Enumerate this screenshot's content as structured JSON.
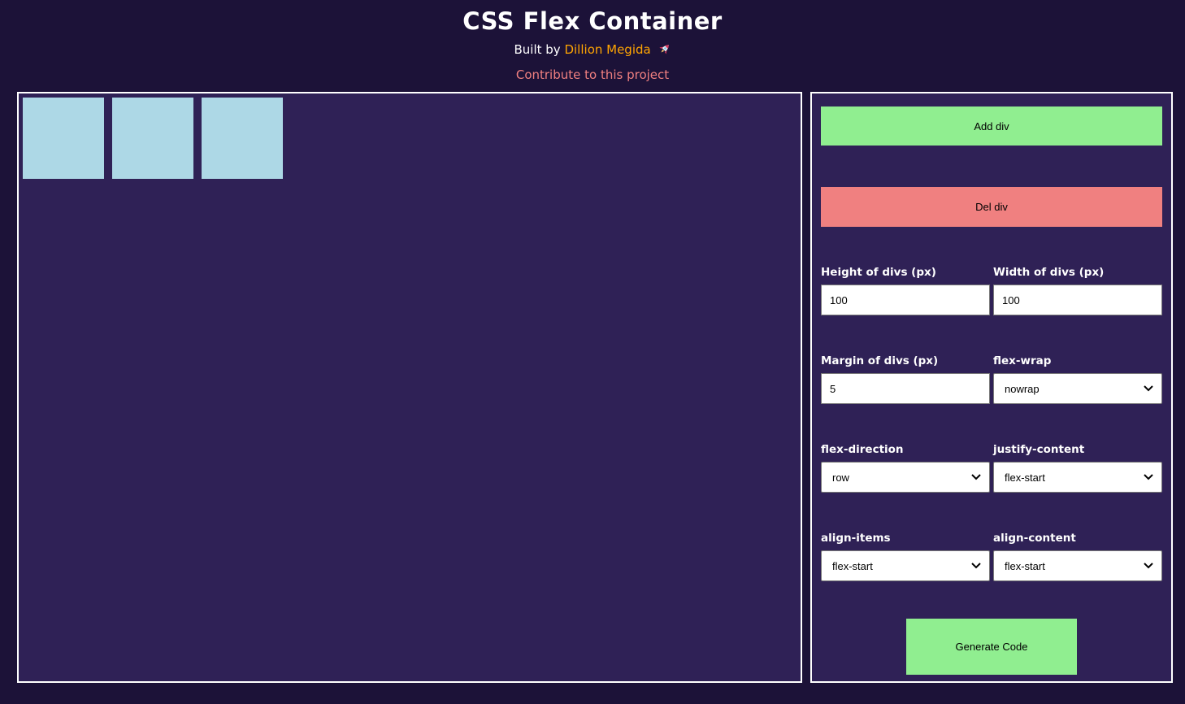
{
  "header": {
    "title": "CSS Flex Container",
    "built_by": "Built by",
    "author_link": "Dillion Megida",
    "rocket_icon": "🚀",
    "contribute_link": "Contribute to this project"
  },
  "playground": {
    "flex_item_count": 3,
    "flex_item_color": "#add8e6"
  },
  "controls": {
    "add_button": "Add div",
    "del_button": "Del div",
    "generate_button": "Generate Code",
    "fields": [
      {
        "id": "height",
        "label": "Height of divs (px)",
        "type": "input",
        "value": "100"
      },
      {
        "id": "width",
        "label": "Width of divs (px)",
        "type": "input",
        "value": "100"
      },
      {
        "id": "margin",
        "label": "Margin of divs (px)",
        "type": "input",
        "value": "5"
      },
      {
        "id": "flex-wrap",
        "label": "flex-wrap",
        "type": "select",
        "value": "nowrap"
      },
      {
        "id": "flex-direction",
        "label": "flex-direction",
        "type": "select",
        "value": "row"
      },
      {
        "id": "justify-content",
        "label": "justify-content",
        "type": "select",
        "value": "flex-start"
      },
      {
        "id": "align-items",
        "label": "align-items",
        "type": "select",
        "value": "flex-start"
      },
      {
        "id": "align-content",
        "label": "align-content",
        "type": "select",
        "value": "flex-start"
      }
    ]
  },
  "colors": {
    "page_background": "#1c1238",
    "panel_background": "#2f2156",
    "panel_border": "#ffffff",
    "flex_item_blue": "#add8e6",
    "button_green": "#90ee90",
    "button_coral": "#f08080",
    "author_orange": "#ffa502",
    "contribute_pink": "#f08080"
  }
}
